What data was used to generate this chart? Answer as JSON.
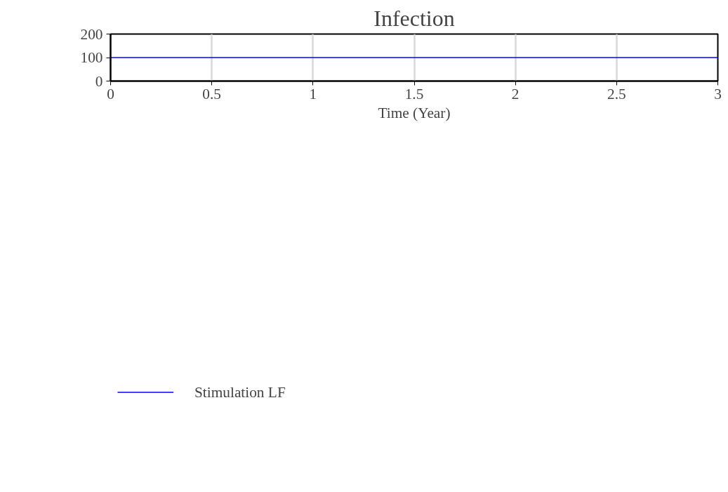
{
  "chart_data": {
    "type": "line",
    "title": "Infection",
    "xlabel": "Time (Year)",
    "x": [
      0,
      3
    ],
    "series": [
      {
        "name": "Stimulation LF",
        "color": "#0000ff",
        "values": [
          100,
          100
        ]
      }
    ],
    "xlim": [
      0,
      3
    ],
    "xticks": [
      0,
      0.5,
      1,
      1.5,
      2,
      2.5,
      3
    ],
    "ylim": [
      0,
      200
    ],
    "yticks": [
      0,
      100,
      200
    ],
    "grid": "x",
    "legend": "bottom left",
    "marker": "none",
    "line_style": "solid"
  }
}
